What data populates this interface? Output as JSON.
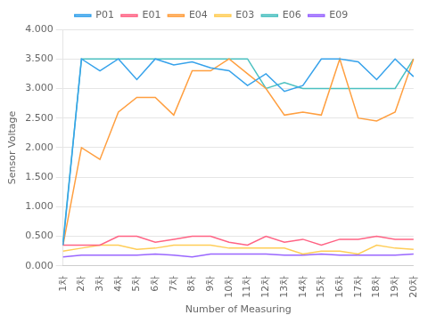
{
  "chart_data": {
    "type": "line",
    "xlabel": "Number of Measuring",
    "ylabel": "Sensor Voltage",
    "categories": [
      "1차",
      "2차",
      "3차",
      "4차",
      "5차",
      "6차",
      "7차",
      "8차",
      "9차",
      "10차",
      "11차",
      "12차",
      "13차",
      "14차",
      "15차",
      "16차",
      "17차",
      "18차",
      "19차",
      "20차"
    ],
    "series": [
      {
        "name": "P01",
        "values": [
          0.35,
          3.5,
          3.3,
          3.5,
          3.15,
          3.5,
          3.4,
          3.45,
          3.35,
          3.3,
          3.05,
          3.25,
          2.95,
          3.05,
          3.5,
          3.5,
          3.45,
          3.15,
          3.5,
          3.2
        ]
      },
      {
        "name": "E01",
        "values": [
          0.35,
          0.35,
          0.35,
          0.5,
          0.5,
          0.4,
          0.45,
          0.5,
          0.5,
          0.4,
          0.35,
          0.5,
          0.4,
          0.45,
          0.35,
          0.45,
          0.45,
          0.5,
          0.45,
          0.45
        ]
      },
      {
        "name": "E04",
        "values": [
          0.35,
          2.0,
          1.8,
          2.6,
          2.85,
          2.85,
          2.55,
          3.3,
          3.3,
          3.5,
          3.25,
          3.0,
          2.55,
          2.6,
          2.55,
          3.5,
          2.5,
          2.45,
          2.6,
          3.5
        ]
      },
      {
        "name": "E03",
        "values": [
          0.25,
          0.3,
          0.35,
          0.35,
          0.28,
          0.3,
          0.35,
          0.35,
          0.35,
          0.3,
          0.3,
          0.3,
          0.3,
          0.2,
          0.25,
          0.25,
          0.2,
          0.35,
          0.3,
          0.28
        ]
      },
      {
        "name": "E06",
        "values": [
          0.4,
          3.5,
          3.5,
          3.5,
          3.5,
          3.5,
          3.5,
          3.5,
          3.5,
          3.5,
          3.5,
          3.0,
          3.1,
          3.0,
          3.0,
          3.0,
          3.0,
          3.0,
          3.0,
          3.5
        ]
      },
      {
        "name": "E09",
        "values": [
          0.15,
          0.18,
          0.18,
          0.18,
          0.18,
          0.2,
          0.18,
          0.15,
          0.2,
          0.2,
          0.2,
          0.2,
          0.18,
          0.18,
          0.2,
          0.18,
          0.18,
          0.18,
          0.18,
          0.2
        ]
      }
    ],
    "ylim": [
      0.0,
      4.0
    ],
    "yticks": [
      {
        "value": 0.0,
        "label": "0.000"
      },
      {
        "value": 0.5,
        "label": "0.500"
      },
      {
        "value": 1.0,
        "label": "1.000"
      },
      {
        "value": 1.5,
        "label": "1.500"
      },
      {
        "value": 2.0,
        "label": "2.000"
      },
      {
        "value": 2.5,
        "label": "2.500"
      },
      {
        "value": 3.0,
        "label": "3.000"
      },
      {
        "value": 3.5,
        "label": "3.500"
      },
      {
        "value": 4.0,
        "label": "4.000"
      }
    ],
    "grid": true,
    "legend": "top"
  }
}
